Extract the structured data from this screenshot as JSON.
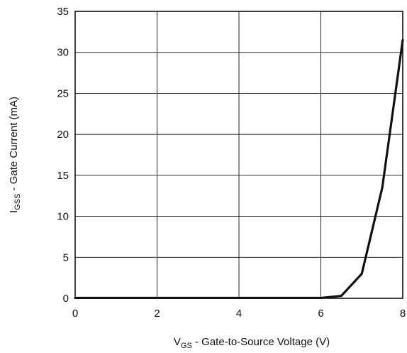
{
  "chart_data": {
    "type": "line",
    "title": "",
    "xlabel": {
      "symbol": "V",
      "subscript": "GS",
      "text": " - Gate-to-Source Voltage (V)"
    },
    "ylabel": {
      "symbol": "I",
      "subscript": "GSS",
      "text": " - Gate Current (mA)"
    },
    "xlim": [
      0,
      8
    ],
    "ylim": [
      0,
      35
    ],
    "xticks": [
      "0",
      "2",
      "4",
      "6",
      "8"
    ],
    "yticks": [
      "0",
      "5",
      "10",
      "15",
      "20",
      "25",
      "30",
      "35"
    ],
    "grid": true,
    "legend": "none",
    "line_color": "#111111",
    "series": [
      {
        "x": [
          0,
          1,
          2,
          3,
          4,
          5,
          6,
          6.5,
          7,
          7.5,
          8
        ],
        "y": [
          0.05,
          0.05,
          0.05,
          0.05,
          0.05,
          0.05,
          0.05,
          0.3,
          3.0,
          13.5,
          31.5
        ]
      }
    ]
  }
}
